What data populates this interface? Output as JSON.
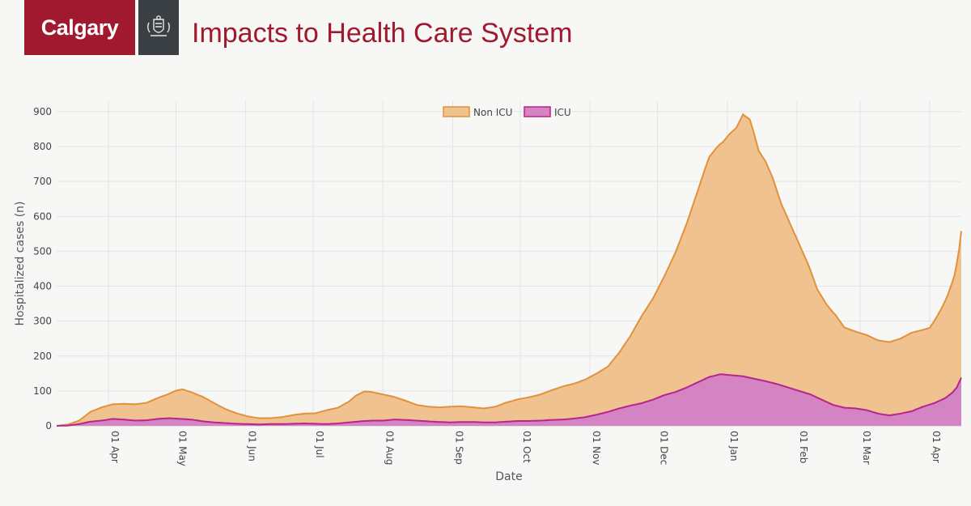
{
  "header": {
    "logo_text": "Calgary",
    "title": "Impacts to Health Care System"
  },
  "colors": {
    "brand_red": "#a1192e",
    "non_icu_fill": "#f0c28f",
    "non_icu_line": "#e3913a",
    "icu_fill": "#d584c3",
    "icu_line": "#b5248f"
  },
  "chart_data": {
    "type": "area",
    "stacked": true,
    "xlabel": "Date",
    "ylabel": "Hospitalized cases (n)",
    "ylim": [
      0,
      930
    ],
    "yticks": [
      0,
      100,
      200,
      300,
      400,
      500,
      600,
      700,
      800,
      900
    ],
    "x_range_days": [
      0,
      402
    ],
    "x_start_label": "2020-03-09",
    "xticks": [
      {
        "day": 23,
        "label": "01 Apr"
      },
      {
        "day": 53,
        "label": "01 May"
      },
      {
        "day": 84,
        "label": "01 Jun"
      },
      {
        "day": 114,
        "label": "01 Jul"
      },
      {
        "day": 145,
        "label": "01 Aug"
      },
      {
        "day": 176,
        "label": "01 Sep"
      },
      {
        "day": 206,
        "label": "01 Oct"
      },
      {
        "day": 237,
        "label": "01 Nov"
      },
      {
        "day": 267,
        "label": "01 Dec"
      },
      {
        "day": 298,
        "label": "01 Jan"
      },
      {
        "day": 329,
        "label": "01 Feb"
      },
      {
        "day": 357,
        "label": "01 Mar"
      },
      {
        "day": 388,
        "label": "01 Apr"
      }
    ],
    "legend": [
      "Non ICU",
      "ICU"
    ],
    "legend_position": "top-center",
    "series": [
      {
        "name": "ICU",
        "points": [
          [
            0,
            0
          ],
          [
            5,
            1
          ],
          [
            10,
            5
          ],
          [
            15,
            12
          ],
          [
            20,
            15
          ],
          [
            25,
            20
          ],
          [
            30,
            18
          ],
          [
            35,
            15
          ],
          [
            40,
            16
          ],
          [
            45,
            20
          ],
          [
            50,
            22
          ],
          [
            55,
            20
          ],
          [
            60,
            18
          ],
          [
            65,
            13
          ],
          [
            70,
            10
          ],
          [
            75,
            8
          ],
          [
            80,
            6
          ],
          [
            85,
            5
          ],
          [
            90,
            4
          ],
          [
            95,
            5
          ],
          [
            100,
            5
          ],
          [
            110,
            7
          ],
          [
            115,
            6
          ],
          [
            120,
            5
          ],
          [
            125,
            7
          ],
          [
            130,
            10
          ],
          [
            135,
            13
          ],
          [
            140,
            15
          ],
          [
            145,
            15
          ],
          [
            150,
            18
          ],
          [
            155,
            17
          ],
          [
            160,
            15
          ],
          [
            165,
            13
          ],
          [
            170,
            11
          ],
          [
            175,
            10
          ],
          [
            180,
            11
          ],
          [
            185,
            11
          ],
          [
            190,
            10
          ],
          [
            195,
            10
          ],
          [
            200,
            12
          ],
          [
            205,
            14
          ],
          [
            210,
            14
          ],
          [
            215,
            15
          ],
          [
            220,
            17
          ],
          [
            225,
            18
          ],
          [
            230,
            21
          ],
          [
            235,
            25
          ],
          [
            240,
            32
          ],
          [
            245,
            40
          ],
          [
            250,
            50
          ],
          [
            255,
            58
          ],
          [
            260,
            65
          ],
          [
            265,
            75
          ],
          [
            270,
            88
          ],
          [
            275,
            97
          ],
          [
            280,
            110
          ],
          [
            285,
            125
          ],
          [
            290,
            140
          ],
          [
            295,
            148
          ],
          [
            300,
            145
          ],
          [
            305,
            142
          ],
          [
            310,
            135
          ],
          [
            315,
            128
          ],
          [
            320,
            120
          ],
          [
            325,
            110
          ],
          [
            330,
            100
          ],
          [
            335,
            90
          ],
          [
            340,
            75
          ],
          [
            345,
            60
          ],
          [
            350,
            52
          ],
          [
            355,
            50
          ],
          [
            360,
            45
          ],
          [
            365,
            35
          ],
          [
            370,
            30
          ],
          [
            375,
            35
          ],
          [
            380,
            42
          ],
          [
            385,
            55
          ],
          [
            390,
            65
          ],
          [
            395,
            80
          ],
          [
            398,
            95
          ],
          [
            400,
            110
          ],
          [
            402,
            138
          ]
        ]
      },
      {
        "name": "Non ICU",
        "points": [
          [
            0,
            0
          ],
          [
            5,
            3
          ],
          [
            10,
            10
          ],
          [
            15,
            28
          ],
          [
            20,
            38
          ],
          [
            25,
            42
          ],
          [
            30,
            45
          ],
          [
            35,
            47
          ],
          [
            40,
            50
          ],
          [
            45,
            60
          ],
          [
            50,
            70
          ],
          [
            53,
            80
          ],
          [
            56,
            85
          ],
          [
            60,
            78
          ],
          [
            65,
            70
          ],
          [
            70,
            55
          ],
          [
            75,
            40
          ],
          [
            80,
            30
          ],
          [
            85,
            22
          ],
          [
            90,
            18
          ],
          [
            95,
            17
          ],
          [
            100,
            20
          ],
          [
            105,
            25
          ],
          [
            110,
            28
          ],
          [
            115,
            30
          ],
          [
            120,
            40
          ],
          [
            125,
            45
          ],
          [
            130,
            60
          ],
          [
            133,
            75
          ],
          [
            137,
            85
          ],
          [
            140,
            82
          ],
          [
            145,
            75
          ],
          [
            150,
            65
          ],
          [
            155,
            55
          ],
          [
            160,
            45
          ],
          [
            165,
            42
          ],
          [
            170,
            42
          ],
          [
            175,
            45
          ],
          [
            180,
            45
          ],
          [
            185,
            42
          ],
          [
            190,
            40
          ],
          [
            195,
            45
          ],
          [
            200,
            55
          ],
          [
            205,
            62
          ],
          [
            210,
            68
          ],
          [
            215,
            75
          ],
          [
            220,
            85
          ],
          [
            225,
            95
          ],
          [
            230,
            100
          ],
          [
            235,
            108
          ],
          [
            240,
            118
          ],
          [
            245,
            130
          ],
          [
            250,
            160
          ],
          [
            255,
            200
          ],
          [
            260,
            250
          ],
          [
            265,
            290
          ],
          [
            270,
            340
          ],
          [
            275,
            400
          ],
          [
            280,
            470
          ],
          [
            285,
            550
          ],
          [
            288,
            600
          ],
          [
            290,
            630
          ],
          [
            293,
            650
          ],
          [
            296,
            665
          ],
          [
            299,
            690
          ],
          [
            302,
            710
          ],
          [
            305,
            750
          ],
          [
            308,
            740
          ],
          [
            310,
            700
          ],
          [
            312,
            655
          ],
          [
            315,
            630
          ],
          [
            318,
            590
          ],
          [
            322,
            520
          ],
          [
            326,
            470
          ],
          [
            330,
            420
          ],
          [
            334,
            370
          ],
          [
            338,
            310
          ],
          [
            342,
            280
          ],
          [
            346,
            260
          ],
          [
            350,
            230
          ],
          [
            355,
            220
          ],
          [
            360,
            215
          ],
          [
            365,
            210
          ],
          [
            370,
            210
          ],
          [
            375,
            215
          ],
          [
            380,
            225
          ],
          [
            385,
            220
          ],
          [
            388,
            220
          ],
          [
            390,
            235
          ],
          [
            393,
            260
          ],
          [
            396,
            290
          ],
          [
            399,
            330
          ],
          [
            401,
            380
          ],
          [
            402,
            420
          ]
        ]
      }
    ]
  }
}
